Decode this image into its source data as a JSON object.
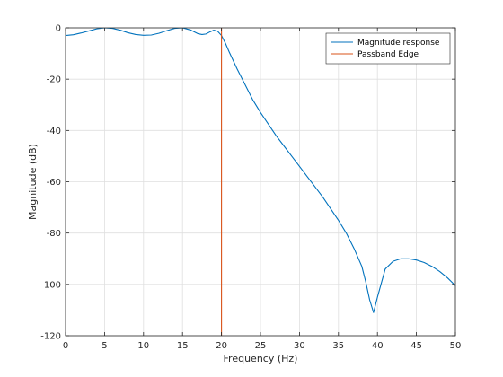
{
  "chart_data": {
    "type": "line",
    "xlabel": "Frequency (Hz)",
    "ylabel": "Magnitude (dB)",
    "xlim": [
      0,
      50
    ],
    "ylim": [
      -120,
      0
    ],
    "xticks": [
      0,
      5,
      10,
      15,
      20,
      25,
      30,
      35,
      40,
      45,
      50
    ],
    "yticks": [
      0,
      -20,
      -40,
      -60,
      -80,
      -100,
      -120
    ],
    "grid": true,
    "legend_position": "top-right",
    "series": [
      {
        "name": "Magnitude response",
        "color": "#0072BD",
        "x": [
          0,
          1,
          2,
          3,
          4,
          5,
          6,
          7,
          8,
          9,
          10,
          11,
          12,
          13,
          14,
          15,
          16,
          17,
          17.5,
          18,
          18.5,
          19,
          19.5,
          20,
          20.5,
          21,
          22,
          23,
          24,
          25,
          26,
          27,
          28,
          29,
          30,
          31,
          32,
          33,
          34,
          35,
          36,
          37,
          38,
          38.5,
          39,
          39.5,
          40,
          41,
          42,
          43,
          44,
          45,
          46,
          47,
          48,
          49,
          50
        ],
        "y": [
          -3,
          -2.7,
          -2,
          -1.2,
          -0.4,
          0,
          -0.2,
          -0.9,
          -1.9,
          -2.6,
          -2.9,
          -2.8,
          -2.1,
          -1.1,
          -0.2,
          0,
          -0.8,
          -2.3,
          -2.6,
          -2.4,
          -1.6,
          -0.9,
          -1.3,
          -3,
          -6,
          -9.5,
          -16,
          -22,
          -28,
          -33,
          -37.5,
          -42,
          -46,
          -50,
          -54,
          -58,
          -62,
          -66,
          -70.5,
          -75,
          -80,
          -86,
          -93,
          -99,
          -106,
          -111,
          -105,
          -94,
          -91,
          -90,
          -90,
          -90.5,
          -91.5,
          -93,
          -95,
          -97.5,
          -100.5
        ]
      },
      {
        "name": "Passband Edge",
        "color": "#D95319",
        "x": [
          20,
          20
        ],
        "y": [
          -120,
          0
        ]
      }
    ]
  }
}
